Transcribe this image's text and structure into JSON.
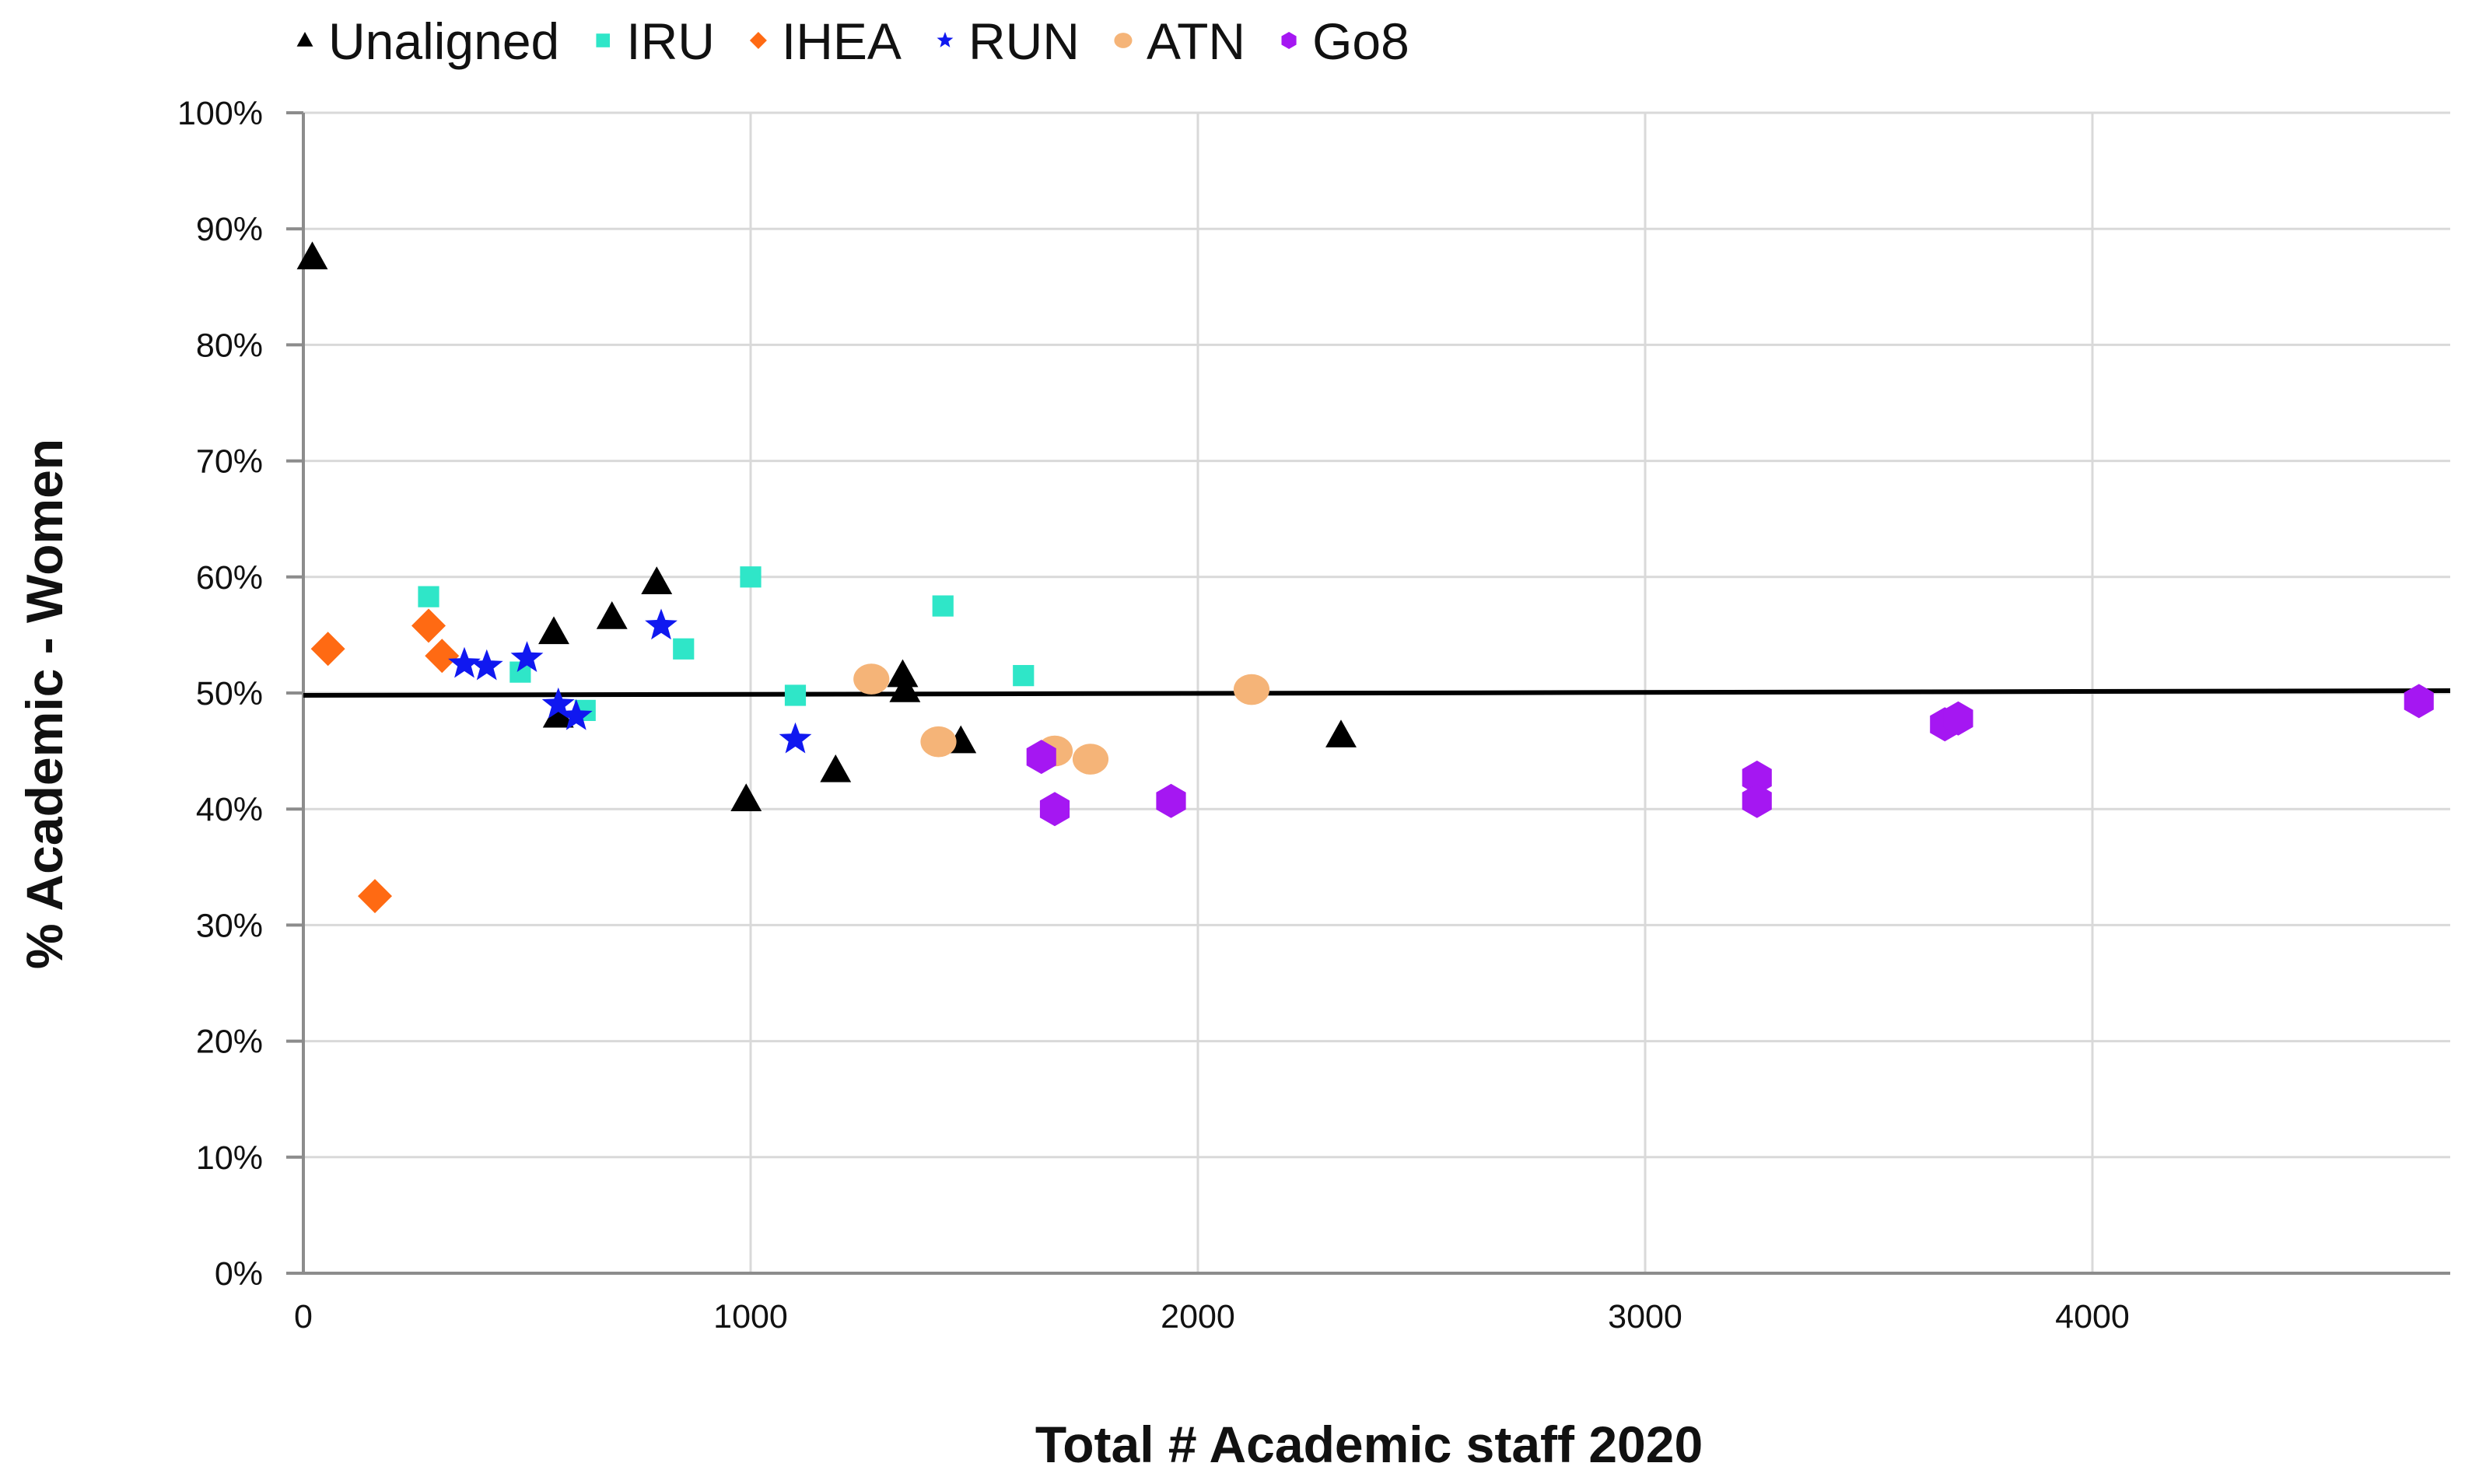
{
  "chart_data": {
    "type": "scatter",
    "xlabel": "Total # Academic staff 2020",
    "ylabel": "%  Academic - Women",
    "xlim": [
      0,
      4800
    ],
    "ylim": [
      0,
      100
    ],
    "x_ticks": [
      0,
      1000,
      2000,
      3000,
      4000
    ],
    "x_tick_labels": [
      "0",
      "1000",
      "2000",
      "3000",
      "4000"
    ],
    "y_ticks": [
      0,
      10,
      20,
      30,
      40,
      50,
      60,
      70,
      80,
      90,
      100
    ],
    "y_tick_labels": [
      "0%",
      "10%",
      "20%",
      "30%",
      "40%",
      "50%",
      "60%",
      "70%",
      "80%",
      "90%",
      "100%"
    ],
    "grid": {
      "vertical": true,
      "horizontal": true
    },
    "legend_position": "top",
    "reference_line": {
      "y_start": 49.8,
      "y_end": 50.2,
      "color": "#000000"
    },
    "series": [
      {
        "name": "Unaligned",
        "marker": "triangle",
        "color": "#000000",
        "points": [
          {
            "x": 20,
            "y": 87.5
          },
          {
            "x": 560,
            "y": 55.2
          },
          {
            "x": 570,
            "y": 48.0
          },
          {
            "x": 690,
            "y": 56.5
          },
          {
            "x": 790,
            "y": 59.5
          },
          {
            "x": 990,
            "y": 40.8
          },
          {
            "x": 1190,
            "y": 43.3
          },
          {
            "x": 1340,
            "y": 51.5
          },
          {
            "x": 1345,
            "y": 50.2
          },
          {
            "x": 1470,
            "y": 45.8
          },
          {
            "x": 2320,
            "y": 46.3
          }
        ]
      },
      {
        "name": "IRU",
        "marker": "square",
        "color": "#2fe6c8",
        "points": [
          {
            "x": 280,
            "y": 58.3
          },
          {
            "x": 485,
            "y": 51.8
          },
          {
            "x": 630,
            "y": 48.5
          },
          {
            "x": 850,
            "y": 53.8
          },
          {
            "x": 1000,
            "y": 60.0
          },
          {
            "x": 1100,
            "y": 49.8
          },
          {
            "x": 1430,
            "y": 57.5
          },
          {
            "x": 1610,
            "y": 51.5
          }
        ]
      },
      {
        "name": "IHEA",
        "marker": "diamond",
        "color": "#ff6a13",
        "points": [
          {
            "x": 55,
            "y": 53.8
          },
          {
            "x": 160,
            "y": 32.5
          },
          {
            "x": 280,
            "y": 55.8
          },
          {
            "x": 310,
            "y": 53.2
          }
        ]
      },
      {
        "name": "RUN",
        "marker": "star",
        "color": "#1018f0",
        "points": [
          {
            "x": 360,
            "y": 52.5
          },
          {
            "x": 410,
            "y": 52.3
          },
          {
            "x": 500,
            "y": 53.0
          },
          {
            "x": 570,
            "y": 49.0
          },
          {
            "x": 610,
            "y": 48.0
          },
          {
            "x": 800,
            "y": 55.8
          },
          {
            "x": 1100,
            "y": 46.0
          }
        ]
      },
      {
        "name": "ATN",
        "marker": "circle",
        "color": "#f5b478",
        "points": [
          {
            "x": 1270,
            "y": 51.2
          },
          {
            "x": 1420,
            "y": 45.8
          },
          {
            "x": 1680,
            "y": 45.0
          },
          {
            "x": 1760,
            "y": 44.3
          },
          {
            "x": 2120,
            "y": 50.3
          }
        ]
      },
      {
        "name": "Go8",
        "marker": "hexagon",
        "color": "#a517f2",
        "points": [
          {
            "x": 1650,
            "y": 44.5
          },
          {
            "x": 1680,
            "y": 40.0
          },
          {
            "x": 1940,
            "y": 40.7
          },
          {
            "x": 3250,
            "y": 42.7
          },
          {
            "x": 3250,
            "y": 40.7
          },
          {
            "x": 3670,
            "y": 47.3
          },
          {
            "x": 3700,
            "y": 47.8
          },
          {
            "x": 4730,
            "y": 49.3
          }
        ]
      }
    ]
  }
}
